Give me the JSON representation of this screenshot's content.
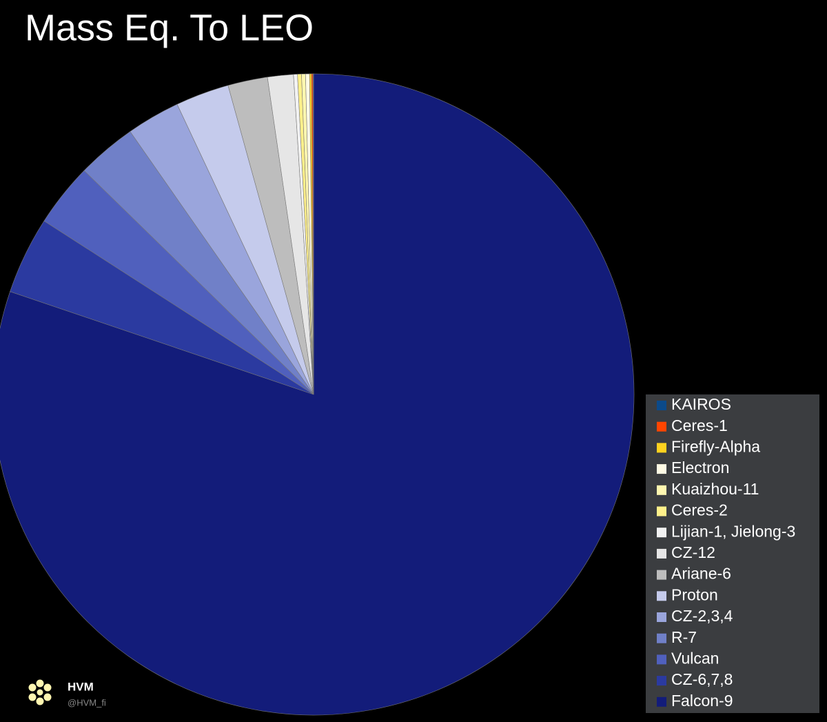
{
  "chart_data": {
    "type": "pie",
    "title": "Mass Eq. To LEO",
    "categories": [
      "KAIROS",
      "Ceres-1",
      "Firefly-Alpha",
      "Electron",
      "Kuaizhou-11",
      "Ceres-2",
      "Lijian-1, Jielong-3",
      "CZ-12",
      "Ariane-6",
      "Proton",
      "CZ-2,3,4",
      "R-7",
      "Vulcan",
      "CZ-6,7,8",
      "Falcon-9"
    ],
    "values": [
      0.03,
      0.07,
      0.1,
      0.2,
      0.2,
      0.2,
      0.2,
      1.3,
      2.0,
      2.7,
      2.7,
      3.0,
      3.2,
      3.9,
      80.2
    ],
    "colors": [
      "#0b4a8a",
      "#ff4500",
      "#ffd21f",
      "#fffbe5",
      "#fff7b0",
      "#fff08a",
      "#f2f2f2",
      "#e6e6e6",
      "#bdbdbd",
      "#c5cbec",
      "#9aa5dc",
      "#7080c8",
      "#5060bd",
      "#2b3aa0",
      "#131c7a"
    ],
    "legend": "bottom-right"
  },
  "watermark": {
    "name": "HVM",
    "handle": "@HVM_fi"
  }
}
